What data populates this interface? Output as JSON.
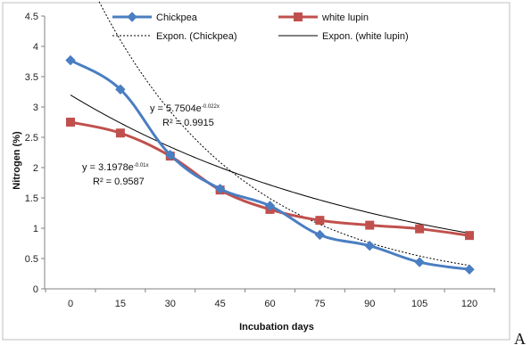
{
  "chart_data": {
    "type": "line",
    "x": [
      0,
      15,
      30,
      45,
      60,
      75,
      90,
      105,
      120
    ],
    "xlabel": "Incubation days",
    "ylabel": "Nitrogen (%)",
    "ylim": [
      0,
      4.5
    ],
    "y_ticks": [
      "0",
      "0.5",
      "1",
      "1.5",
      "2",
      "2.5",
      "3",
      "3.5",
      "4",
      "4.5"
    ],
    "x_ticks": [
      "0",
      "15",
      "30",
      "45",
      "60",
      "75",
      "90",
      "105",
      "120"
    ],
    "grid": false,
    "legend_position": "top",
    "series": [
      {
        "name": "Chickpea",
        "values": [
          3.77,
          3.29,
          2.21,
          1.65,
          1.37,
          0.89,
          0.71,
          0.44,
          0.32
        ],
        "color": "#4a7ec2",
        "marker": "diamond"
      },
      {
        "name": "white lupin",
        "values": [
          2.75,
          2.57,
          2.19,
          1.63,
          1.31,
          1.13,
          1.05,
          0.99,
          0.88
        ],
        "color": "#c0504d",
        "marker": "square"
      }
    ],
    "trendlines": [
      {
        "name": "Expon. (Chickpea)",
        "a": 5.7504,
        "b": -0.0225,
        "color": "#000000",
        "dash": true
      },
      {
        "name": "Expon. (white lupin)",
        "a": 3.1978,
        "b": -0.0104,
        "color": "#000000",
        "dash": false
      }
    ],
    "annotations": [
      {
        "eq_prefix": "y = 5.7504e",
        "eq_exp": "-0.022x",
        "r2": "R² = 0.9915"
      },
      {
        "eq_prefix": "y = 3.1978e",
        "eq_exp": "-0.01x",
        "r2": "R² = 0.9587"
      }
    ]
  },
  "trailing_text": "A"
}
